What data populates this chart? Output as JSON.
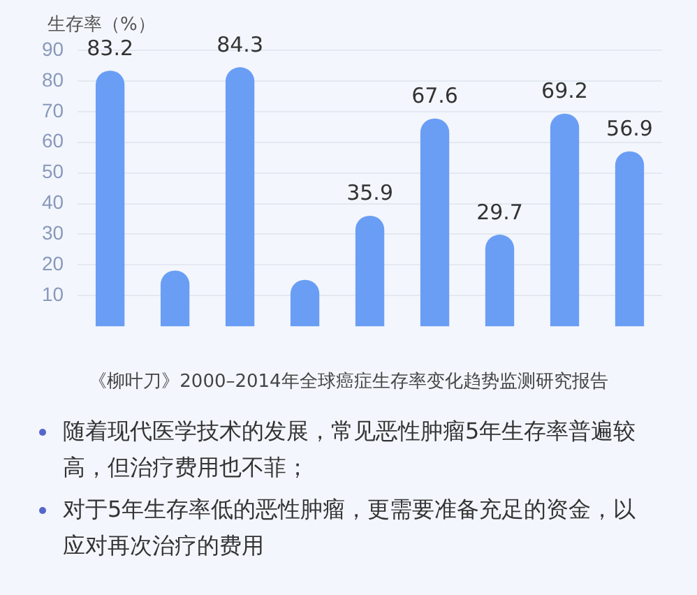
{
  "chart_data": {
    "type": "bar",
    "ylabel": "生存率（%）",
    "categories": [
      null,
      null,
      null,
      null,
      null,
      null,
      null,
      null,
      null
    ],
    "values": [
      83.2,
      18,
      84.3,
      15,
      35.9,
      67.6,
      29.7,
      69.2,
      56.9
    ],
    "value_labels": [
      "83.2",
      null,
      "84.3",
      null,
      "35.9",
      "67.6",
      "29.7",
      "69.2",
      "56.9"
    ],
    "color": "#6a9ef5",
    "ylim": [
      0,
      90
    ],
    "yticks": [
      10,
      20,
      30,
      40,
      50,
      60,
      70,
      80,
      90
    ],
    "grid": "y",
    "annotations": [
      "《柳叶刀》2000–2014年全球癌症生存率变化趋势监测研究报告",
      "随着现代医学技术的发展，常见恶性肿瘤5年生存率普遍较高，但治疗费用也不菲；",
      "对于5年生存率低的恶性肿瘤，更需要准备充足的资金，以应对再次治疗的费用"
    ]
  }
}
